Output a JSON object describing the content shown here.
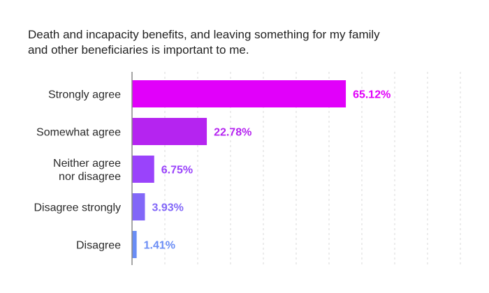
{
  "chart_data": {
    "type": "bar",
    "orientation": "horizontal",
    "title_lines": [
      "Death and incapacity benefits, and leaving something for my family",
      "and other beneficiaries is important to me."
    ],
    "categories": [
      [
        "Strongly agree"
      ],
      [
        "Somewhat agree"
      ],
      [
        "Neither agree",
        "nor disagree"
      ],
      [
        "Disagree strongly"
      ],
      [
        "Disagree"
      ]
    ],
    "values": [
      65.12,
      22.78,
      6.75,
      3.93,
      1.41
    ],
    "value_labels": [
      "65.12%",
      "22.78%",
      "6.75%",
      "3.93%",
      "1.41%"
    ],
    "bar_colors": [
      "#e100fa",
      "#b524f0",
      "#9a43fb",
      "#8267f8",
      "#6a8df5"
    ],
    "xlim": [
      0,
      100
    ],
    "grid": "vertical-dashed",
    "legend": "none"
  }
}
